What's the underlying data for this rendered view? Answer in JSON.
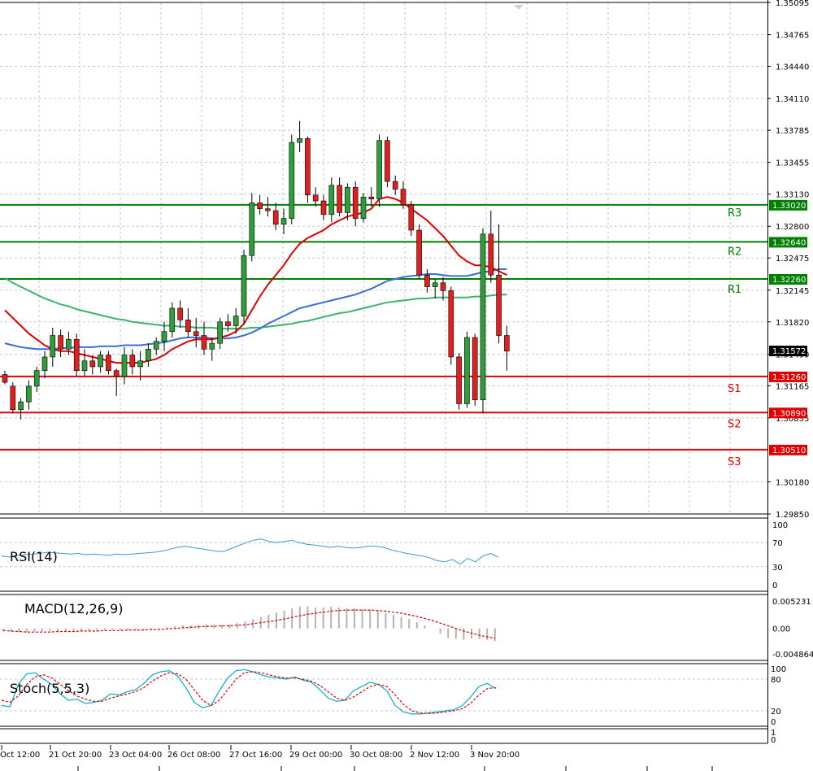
{
  "price_axis": {
    "labels": [
      "1.35095",
      "1.34765",
      "1.34440",
      "1.34110",
      "1.33785",
      "1.33455",
      "1.33130",
      "1.32800",
      "1.32475",
      "1.32145",
      "1.31820",
      "1.31490",
      "1.31165",
      "1.30835",
      "1.30180",
      "1.29850"
    ]
  },
  "current_price": "1.31572",
  "levels": [
    {
      "name": "R3",
      "value": "1.33020",
      "color": "#008000"
    },
    {
      "name": "R2",
      "value": "1.32640",
      "color": "#008000"
    },
    {
      "name": "R1",
      "value": "1.32260",
      "color": "#008000"
    },
    {
      "name": "S1",
      "value": "1.31260",
      "color": "#e00000"
    },
    {
      "name": "S2",
      "value": "1.30890",
      "color": "#e00000"
    },
    {
      "name": "S3",
      "value": "1.30510",
      "color": "#e00000"
    }
  ],
  "time_axis": [
    "Oct 12:00",
    "21 Oct 20:00",
    "23 Oct 04:00",
    "26 Oct 08:00",
    "27 Oct 16:00",
    "29 Oct 00:00",
    "30 Oct 08:00",
    "2 Nov 12:00",
    "3 Nov 20:00"
  ],
  "panels": {
    "rsi": {
      "label": "RSI(14)",
      "scale": [
        "100",
        "70",
        "30",
        "0"
      ]
    },
    "macd": {
      "label": "MACD(12,26,9)",
      "scale": [
        "0.005231",
        "0.00",
        "-0.004864"
      ]
    },
    "stoch": {
      "label": "Stoch(5,5,3)",
      "scale": [
        "100",
        "80",
        "20",
        "0"
      ]
    },
    "bottom": {
      "scale": [
        "1",
        "0"
      ]
    }
  },
  "colors": {
    "bull": "#2e9e3a",
    "bear": "#e02020",
    "ma_fast": "#e00000",
    "ma_mid": "#3a6fd8",
    "ma_slow": "#3cb371",
    "rsi": "#3a9ad9",
    "stoch_main": "#00b0c8",
    "stoch_signal": "#e00000",
    "macd_hist": "#b4b4b4",
    "macd_signal": "#e00000",
    "grid": "#c8c8c8"
  },
  "chart_data": {
    "type": "candlestick",
    "ylim": [
      1.2985,
      1.35095
    ],
    "candles": [
      [
        1.3128,
        1.3132,
        1.3118,
        1.312
      ],
      [
        1.3116,
        1.312,
        1.3088,
        1.3092
      ],
      [
        1.3092,
        1.3104,
        1.3082,
        1.31
      ],
      [
        1.31,
        1.3122,
        1.3092,
        1.3116
      ],
      [
        1.3116,
        1.3136,
        1.311,
        1.3132
      ],
      [
        1.3132,
        1.3152,
        1.3124,
        1.3146
      ],
      [
        1.3146,
        1.3176,
        1.3136,
        1.3168
      ],
      [
        1.3168,
        1.3174,
        1.3146,
        1.3154
      ],
      [
        1.3154,
        1.3172,
        1.3148,
        1.3164
      ],
      [
        1.3164,
        1.317,
        1.3126,
        1.3132
      ],
      [
        1.3132,
        1.3154,
        1.3126,
        1.3142
      ],
      [
        1.3142,
        1.3148,
        1.3128,
        1.3136
      ],
      [
        1.3136,
        1.3152,
        1.313,
        1.3148
      ],
      [
        1.3148,
        1.3152,
        1.3128,
        1.3132
      ],
      [
        1.3132,
        1.3134,
        1.3106,
        1.3126
      ],
      [
        1.3126,
        1.3156,
        1.3118,
        1.3148
      ],
      [
        1.3148,
        1.3154,
        1.3128,
        1.3136
      ],
      [
        1.3136,
        1.3152,
        1.3122,
        1.3142
      ],
      [
        1.3142,
        1.316,
        1.3136,
        1.3154
      ],
      [
        1.3154,
        1.3166,
        1.3148,
        1.3162
      ],
      [
        1.3162,
        1.3182,
        1.3152,
        1.3172
      ],
      [
        1.3172,
        1.3202,
        1.3166,
        1.3196
      ],
      [
        1.3196,
        1.3204,
        1.3176,
        1.3184
      ],
      [
        1.3184,
        1.3196,
        1.3166,
        1.3172
      ],
      [
        1.3172,
        1.3186,
        1.3156,
        1.3168
      ],
      [
        1.3168,
        1.3182,
        1.3148,
        1.3154
      ],
      [
        1.3154,
        1.3166,
        1.3142,
        1.316
      ],
      [
        1.316,
        1.3186,
        1.3154,
        1.3182
      ],
      [
        1.3182,
        1.319,
        1.3172,
        1.3178
      ],
      [
        1.3178,
        1.3196,
        1.317,
        1.3188
      ],
      [
        1.3188,
        1.3256,
        1.318,
        1.325
      ],
      [
        1.325,
        1.3314,
        1.3244,
        1.3304
      ],
      [
        1.3304,
        1.3312,
        1.3292,
        1.3298
      ],
      [
        1.3298,
        1.331,
        1.329,
        1.3296
      ],
      [
        1.3296,
        1.3304,
        1.3276,
        1.3282
      ],
      [
        1.3282,
        1.3298,
        1.3272,
        1.3288
      ],
      [
        1.3288,
        1.3374,
        1.3282,
        1.3366
      ],
      [
        1.3366,
        1.3388,
        1.3356,
        1.337
      ],
      [
        1.337,
        1.3372,
        1.3304,
        1.3312
      ],
      [
        1.3312,
        1.332,
        1.33,
        1.3306
      ],
      [
        1.3306,
        1.3312,
        1.3286,
        1.3292
      ],
      [
        1.3292,
        1.333,
        1.3284,
        1.3322
      ],
      [
        1.3322,
        1.333,
        1.329,
        1.3294
      ],
      [
        1.3294,
        1.3324,
        1.3286,
        1.332
      ],
      [
        1.332,
        1.3326,
        1.328,
        1.3288
      ],
      [
        1.3288,
        1.3314,
        1.3284,
        1.331
      ],
      [
        1.331,
        1.332,
        1.33,
        1.3308
      ],
      [
        1.3308,
        1.3374,
        1.33,
        1.3368
      ],
      [
        1.3368,
        1.3372,
        1.332,
        1.3326
      ],
      [
        1.3326,
        1.3332,
        1.3312,
        1.3318
      ],
      [
        1.3318,
        1.3326,
        1.3298,
        1.3302
      ],
      [
        1.3302,
        1.3306,
        1.327,
        1.3276
      ],
      [
        1.3276,
        1.3282,
        1.3226,
        1.323
      ],
      [
        1.323,
        1.3236,
        1.3212,
        1.3218
      ],
      [
        1.3218,
        1.3226,
        1.3206,
        1.3222
      ],
      [
        1.3222,
        1.3228,
        1.3204,
        1.3214
      ],
      [
        1.3214,
        1.3218,
        1.3138,
        1.3146
      ],
      [
        1.3146,
        1.315,
        1.3092,
        1.3098
      ],
      [
        1.3098,
        1.3172,
        1.3094,
        1.3166
      ],
      [
        1.3166,
        1.317,
        1.3096,
        1.3102
      ],
      [
        1.3102,
        1.3278,
        1.3088,
        1.3272
      ],
      [
        1.3272,
        1.3296,
        1.3222,
        1.323
      ],
      [
        1.323,
        1.3282,
        1.316,
        1.3168
      ],
      [
        1.3168,
        1.3178,
        1.3132,
        1.3152
      ]
    ],
    "ma_fast": [
      1.3194,
      1.3186,
      1.3178,
      1.317,
      1.3164,
      1.3158,
      1.3154,
      1.3152,
      1.3152,
      1.315,
      1.3148,
      1.3146,
      1.3144,
      1.3142,
      1.314,
      1.314,
      1.314,
      1.314,
      1.3142,
      1.3144,
      1.3148,
      1.3154,
      1.3158,
      1.3162,
      1.3164,
      1.3164,
      1.3164,
      1.3166,
      1.3168,
      1.3172,
      1.318,
      1.3194,
      1.3208,
      1.322,
      1.323,
      1.324,
      1.3252,
      1.3262,
      1.3268,
      1.3272,
      1.3276,
      1.3282,
      1.3286,
      1.329,
      1.3292,
      1.3294,
      1.3298,
      1.3308,
      1.331,
      1.3308,
      1.3304,
      1.3298,
      1.3292,
      1.3286,
      1.3278,
      1.327,
      1.326,
      1.325,
      1.3244,
      1.324,
      1.324,
      1.3238,
      1.3234,
      1.323
    ],
    "ma_mid": [
      1.316,
      1.3158,
      1.3156,
      1.3155,
      1.3154,
      1.3154,
      1.3154,
      1.3155,
      1.3155,
      1.3156,
      1.3156,
      1.3156,
      1.3157,
      1.3157,
      1.3157,
      1.3158,
      1.3158,
      1.3158,
      1.3159,
      1.316,
      1.3161,
      1.3163,
      1.3165,
      1.3166,
      1.3166,
      1.3166,
      1.3165,
      1.3165,
      1.3165,
      1.3166,
      1.3168,
      1.3171,
      1.3175,
      1.318,
      1.3184,
      1.3188,
      1.3192,
      1.3196,
      1.3198,
      1.32,
      1.3202,
      1.3204,
      1.3206,
      1.3208,
      1.321,
      1.3213,
      1.3216,
      1.322,
      1.3224,
      1.3226,
      1.3228,
      1.3229,
      1.323,
      1.3231,
      1.3231,
      1.323,
      1.3229,
      1.3229,
      1.3229,
      1.3231,
      1.3233,
      1.3234,
      1.3236,
      1.3236
    ],
    "ma_slow": [
      1.3227,
      1.3222,
      1.3218,
      1.3214,
      1.321,
      1.3206,
      1.3203,
      1.32,
      1.3198,
      1.3195,
      1.3193,
      1.3191,
      1.3189,
      1.3187,
      1.3185,
      1.3184,
      1.3182,
      1.3181,
      1.318,
      1.3179,
      1.3178,
      1.3178,
      1.3177,
      1.3177,
      1.3176,
      1.3176,
      1.3176,
      1.3175,
      1.3175,
      1.3175,
      1.3175,
      1.3176,
      1.3176,
      1.3177,
      1.3178,
      1.3179,
      1.318,
      1.3182,
      1.3183,
      1.3185,
      1.3187,
      1.3189,
      1.3191,
      1.3192,
      1.3194,
      1.3196,
      1.3198,
      1.32,
      1.3202,
      1.3203,
      1.3204,
      1.3205,
      1.3206,
      1.3206,
      1.3207,
      1.3207,
      1.3207,
      1.3207,
      1.3207,
      1.3208,
      1.3208,
      1.3209,
      1.321,
      1.321
    ],
    "rsi": [
      48,
      46,
      49,
      50,
      51,
      52,
      54,
      53,
      52,
      51,
      52,
      50,
      51,
      50,
      49,
      51,
      50,
      51,
      52,
      53,
      54,
      56,
      59,
      62,
      64,
      62,
      60,
      58,
      56,
      55,
      60,
      65,
      70,
      74,
      76,
      72,
      70,
      72,
      74,
      70,
      67,
      66,
      64,
      62,
      64,
      62,
      61,
      62,
      64,
      64,
      62,
      58,
      55,
      52,
      50,
      48,
      45,
      40,
      38,
      42,
      34,
      44,
      38,
      48,
      52,
      46
    ],
    "macd_hist": [
      -0.0006,
      -0.0007,
      -0.0007,
      -0.0007,
      -0.0006,
      -0.0006,
      -0.0005,
      -0.0005,
      -0.0005,
      -0.0004,
      -0.0004,
      -0.0004,
      -0.0004,
      -0.0004,
      -0.0003,
      -0.0003,
      -0.0003,
      -0.0002,
      -0.0002,
      -0.0002,
      -0.0001,
      0.0002,
      0.0004,
      0.0006,
      0.0006,
      0.0007,
      0.0007,
      0.0007,
      0.0007,
      0.0008,
      0.001,
      0.0014,
      0.0018,
      0.0022,
      0.0026,
      0.003,
      0.0034,
      0.0038,
      0.0042,
      0.0042,
      0.004,
      0.004,
      0.0041,
      0.004,
      0.0038,
      0.0038,
      0.0036,
      0.0036,
      0.0034,
      0.003,
      0.0026,
      0.0022,
      0.0018,
      0.0012,
      0.0006,
      0.0,
      -0.001,
      -0.0018,
      -0.002,
      -0.0022,
      -0.002,
      -0.002,
      -0.0022,
      -0.0024
    ],
    "macd_signal": [
      -0.0004,
      -0.0005,
      -0.0006,
      -0.0007,
      -0.0007,
      -0.0007,
      -0.0007,
      -0.0006,
      -0.0006,
      -0.0006,
      -0.0005,
      -0.0005,
      -0.0005,
      -0.0004,
      -0.0004,
      -0.0004,
      -0.0003,
      -0.0003,
      -0.0003,
      -0.0002,
      -0.0002,
      -0.0001,
      0.0,
      0.0001,
      0.0002,
      0.0003,
      0.0004,
      0.0004,
      0.0005,
      0.0005,
      0.0006,
      0.0007,
      0.0009,
      0.0011,
      0.0013,
      0.0015,
      0.0018,
      0.0021,
      0.0024,
      0.0027,
      0.0029,
      0.0031,
      0.0033,
      0.0034,
      0.0035,
      0.0035,
      0.0035,
      0.0035,
      0.0034,
      0.0033,
      0.0031,
      0.0029,
      0.0026,
      0.0023,
      0.0019,
      0.0015,
      0.001,
      0.0005,
      0.0,
      -0.0005,
      -0.0009,
      -0.0013,
      -0.0016,
      -0.0019
    ],
    "stoch_main": [
      30,
      28,
      70,
      90,
      92,
      80,
      70,
      52,
      40,
      42,
      34,
      36,
      40,
      52,
      50,
      56,
      60,
      72,
      88,
      94,
      96,
      86,
      64,
      36,
      26,
      30,
      58,
      82,
      96,
      98,
      94,
      88,
      84,
      82,
      80,
      84,
      78,
      74,
      60,
      44,
      38,
      40,
      58,
      66,
      74,
      70,
      58,
      30,
      18,
      14,
      14,
      16,
      18,
      20,
      22,
      30,
      46,
      66,
      72,
      62
    ],
    "stoch_signal": [
      40,
      36,
      48,
      70,
      84,
      88,
      82,
      70,
      58,
      48,
      42,
      38,
      38,
      44,
      48,
      52,
      56,
      64,
      76,
      86,
      92,
      90,
      80,
      60,
      40,
      30,
      40,
      60,
      80,
      92,
      94,
      92,
      88,
      84,
      82,
      82,
      80,
      76,
      68,
      56,
      44,
      40,
      46,
      56,
      66,
      70,
      66,
      50,
      32,
      20,
      16,
      15,
      16,
      18,
      20,
      24,
      34,
      50,
      62,
      64
    ]
  }
}
